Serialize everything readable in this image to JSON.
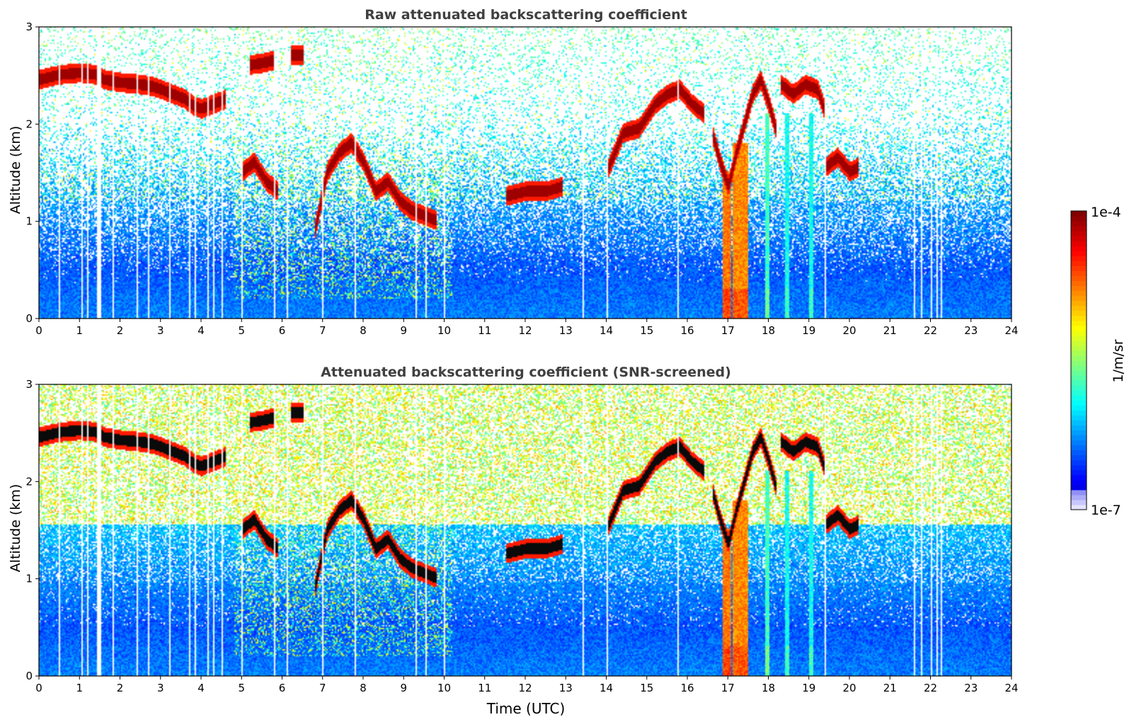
{
  "chart_data": [
    {
      "type": "heatmap",
      "title": "Raw attenuated backscattering coefficient",
      "xlabel": "",
      "ylabel": "Altitude (km)",
      "xlim": [
        0,
        24
      ],
      "ylim": [
        0,
        3
      ],
      "x_ticks": [
        "0",
        "1",
        "2",
        "3",
        "4",
        "5",
        "6",
        "7",
        "8",
        "9",
        "10",
        "11",
        "12",
        "13",
        "14",
        "15",
        "16",
        "17",
        "18",
        "19",
        "20",
        "21",
        "22",
        "23",
        "24"
      ],
      "y_ticks": [
        "0",
        "1",
        "2",
        "3"
      ],
      "screened": false,
      "cloud_layers": [
        {
          "t": [
            0.0,
            0.5,
            1.0,
            1.4,
            1.6,
            2.0,
            2.5,
            2.8,
            3.0,
            3.3,
            3.6,
            3.8,
            4.0,
            4.3,
            4.6
          ],
          "alt": [
            2.45,
            2.5,
            2.52,
            2.5,
            2.45,
            2.42,
            2.4,
            2.38,
            2.35,
            2.3,
            2.25,
            2.18,
            2.15,
            2.2,
            2.25
          ]
        },
        {
          "t": [
            5.2,
            5.5,
            5.8
          ],
          "alt": [
            2.6,
            2.62,
            2.65
          ]
        },
        {
          "t": [
            6.2,
            6.5
          ],
          "alt": [
            2.7,
            2.7
          ]
        },
        {
          "t": [
            5.0,
            5.3,
            5.6,
            5.9
          ],
          "alt": [
            1.5,
            1.6,
            1.4,
            1.3
          ]
        },
        {
          "t": [
            6.8,
            7.1,
            7.4,
            7.7,
            8.0,
            8.3,
            8.6,
            8.9,
            9.2,
            9.5,
            9.8
          ],
          "alt": [
            0.9,
            1.5,
            1.7,
            1.8,
            1.6,
            1.3,
            1.4,
            1.2,
            1.1,
            1.05,
            1.0
          ]
        },
        {
          "t": [
            11.5,
            12.0,
            12.5,
            12.9
          ],
          "alt": [
            1.25,
            1.3,
            1.3,
            1.35
          ]
        },
        {
          "t": [
            14.0,
            14.4,
            14.8,
            15.2,
            15.5,
            15.8,
            16.1,
            16.4
          ],
          "alt": [
            1.5,
            1.9,
            1.95,
            2.2,
            2.3,
            2.35,
            2.2,
            2.1
          ]
        },
        {
          "t": [
            16.6,
            16.8,
            17.0,
            17.2,
            17.4,
            17.6,
            17.8,
            18.0,
            18.2
          ],
          "alt": [
            1.9,
            1.6,
            1.35,
            1.7,
            2.0,
            2.3,
            2.45,
            2.2,
            1.9
          ]
        },
        {
          "t": [
            18.3,
            18.6,
            18.9,
            19.2,
            19.4
          ],
          "alt": [
            2.4,
            2.3,
            2.4,
            2.35,
            2.1
          ]
        },
        {
          "t": [
            19.4,
            19.7,
            20.0,
            20.2
          ],
          "alt": [
            1.55,
            1.65,
            1.5,
            1.55
          ]
        }
      ],
      "precip_shafts": [
        {
          "t0": 16.85,
          "t1": 17.05,
          "top": 1.5,
          "level": 0.82
        },
        {
          "t0": 17.1,
          "t1": 17.5,
          "top": 1.8,
          "level": 0.8
        },
        {
          "t0": 17.9,
          "t1": 18.0,
          "top": 2.1,
          "level": 0.5
        },
        {
          "t0": 18.4,
          "t1": 18.5,
          "top": 2.1,
          "level": 0.45
        },
        {
          "t0": 19.0,
          "t1": 19.1,
          "top": 2.1,
          "level": 0.45
        }
      ],
      "data_gaps": [
        0.5,
        1.05,
        1.2,
        1.45,
        1.5,
        1.8,
        2.4,
        2.7,
        3.2,
        3.7,
        3.85,
        4.15,
        4.3,
        4.5,
        5.0,
        5.8,
        6.1,
        7.0,
        7.8,
        9.3,
        9.55,
        10.0,
        13.4,
        14.0,
        15.75,
        19.4,
        21.6,
        21.75,
        22.0,
        22.15,
        22.25
      ]
    },
    {
      "type": "heatmap",
      "title": "Attenuated backscattering coefficient (SNR-screened)",
      "xlabel": "Time (UTC)",
      "ylabel": "Altitude (km)",
      "xlim": [
        0,
        24
      ],
      "ylim": [
        0,
        3
      ],
      "x_ticks": [
        "0",
        "1",
        "2",
        "3",
        "4",
        "5",
        "6",
        "7",
        "8",
        "9",
        "10",
        "11",
        "12",
        "13",
        "14",
        "15",
        "16",
        "17",
        "18",
        "19",
        "20",
        "21",
        "22",
        "23",
        "24"
      ],
      "y_ticks": [
        "0",
        "1",
        "2",
        "3"
      ],
      "screened": true
    }
  ],
  "colorbar": {
    "label": "1/m/sr",
    "max_label": "1e-4",
    "min_label": "1e-7",
    "colormap": "jet",
    "scale": "log"
  },
  "colors": {
    "title_text": "#404040",
    "axis": "#000000",
    "background": "#ffffff"
  }
}
